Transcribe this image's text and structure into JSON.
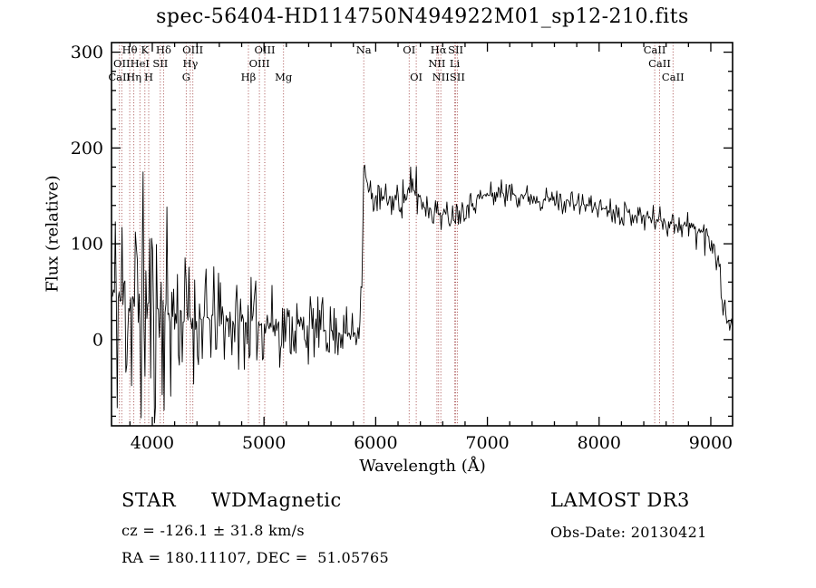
{
  "chart_data": {
    "type": "line",
    "title": "spec-56404-HD114750N494922M01_sp12-210.fits",
    "xlabel": "Wavelength (Å)",
    "ylabel": "Flux (relative)",
    "xlim": [
      3635,
      9195
    ],
    "ylim": [
      -90,
      310
    ],
    "xticks": [
      4000,
      5000,
      6000,
      7000,
      8000,
      9000
    ],
    "yticks": [
      0,
      100,
      200,
      300
    ],
    "x_minor_step": 200,
    "y_minor_step": 20,
    "grid": false,
    "legend": "none",
    "colors": {
      "spectrum": "#000000",
      "marker_line": "#9e3c3c",
      "label": "#111111",
      "frame": "#000000",
      "background": "#ffffff"
    },
    "spectral_lines": [
      {
        "label": "CaII",
        "wavelength": 3706,
        "row": 3
      },
      {
        "label": "OII",
        "wavelength": 3727,
        "row": 2
      },
      {
        "label": "Hθ",
        "wavelength": 3798,
        "row": 1
      },
      {
        "label": "Hη",
        "wavelength": 3835,
        "row": 3
      },
      {
        "label": "HeI",
        "wavelength": 3889,
        "row": 2
      },
      {
        "label": "K",
        "wavelength": 3934,
        "row": 1
      },
      {
        "label": "H",
        "wavelength": 3968,
        "row": 3
      },
      {
        "label": "SII",
        "wavelength": 4072,
        "row": 2
      },
      {
        "label": "Hδ",
        "wavelength": 4101,
        "row": 1
      },
      {
        "label": "G",
        "wavelength": 4304,
        "row": 3
      },
      {
        "label": "Hγ",
        "wavelength": 4340,
        "row": 2
      },
      {
        "label": "OIII",
        "wavelength": 4363,
        "row": 1
      },
      {
        "label": "Hβ",
        "wavelength": 4861,
        "row": 3
      },
      {
        "label": "OIII",
        "wavelength": 4959,
        "row": 2
      },
      {
        "label": "OIII",
        "wavelength": 5007,
        "row": 1
      },
      {
        "label": "Mg",
        "wavelength": 5175,
        "row": 3
      },
      {
        "label": "Na",
        "wavelength": 5893,
        "row": 1
      },
      {
        "label": "OI",
        "wavelength": 6300,
        "row": 1
      },
      {
        "label": "OI",
        "wavelength": 6363,
        "row": 3
      },
      {
        "label": "NII",
        "wavelength": 6548,
        "row": 2
      },
      {
        "label": "Hα",
        "wavelength": 6563,
        "row": 1
      },
      {
        "label": "NII",
        "wavelength": 6583,
        "row": 3
      },
      {
        "label": "Li",
        "wavelength": 6708,
        "row": 2
      },
      {
        "label": "SII",
        "wavelength": 6716,
        "row": 1
      },
      {
        "label": "SII",
        "wavelength": 6731,
        "row": 3
      },
      {
        "label": "CaII",
        "wavelength": 8498,
        "row": 1
      },
      {
        "label": "CaII",
        "wavelength": 8542,
        "row": 2
      },
      {
        "label": "CaII",
        "wavelength": 8662,
        "row": 3
      }
    ],
    "spectrum_profile": {
      "description": "Noisy stellar spectrum. control_points = [wavelength_A, mean_flux, noise_amplitude]; very noisy low flux (~0-50) blueward of 5880 A, sharp jump near Na 5893 A to peak ~190, then smooth continuum ~150 declining to ~115 at 8900 A with a steep drop at the red edge.",
      "control_points": [
        [
          3635,
          45,
          85
        ],
        [
          3750,
          40,
          85
        ],
        [
          3900,
          38,
          80
        ],
        [
          4050,
          32,
          75
        ],
        [
          4200,
          26,
          50
        ],
        [
          4350,
          22,
          38
        ],
        [
          4550,
          20,
          30
        ],
        [
          4800,
          18,
          26
        ],
        [
          5050,
          16,
          24
        ],
        [
          5300,
          13,
          22
        ],
        [
          5550,
          10,
          18
        ],
        [
          5750,
          6,
          15
        ],
        [
          5840,
          8,
          12
        ],
        [
          5875,
          60,
          15
        ],
        [
          5893,
          180,
          12
        ],
        [
          5910,
          170,
          12
        ],
        [
          5945,
          150,
          12
        ],
        [
          6050,
          146,
          10
        ],
        [
          6200,
          146,
          10
        ],
        [
          6310,
          152,
          16
        ],
        [
          6355,
          158,
          22
        ],
        [
          6420,
          142,
          9
        ],
        [
          6540,
          133,
          9
        ],
        [
          6650,
          129,
          9
        ],
        [
          6800,
          139,
          8
        ],
        [
          6950,
          149,
          8
        ],
        [
          7120,
          154,
          8
        ],
        [
          7300,
          151,
          8
        ],
        [
          7500,
          147,
          7
        ],
        [
          7700,
          144,
          7
        ],
        [
          7900,
          140,
          7
        ],
        [
          8100,
          136,
          7
        ],
        [
          8300,
          131,
          8
        ],
        [
          8500,
          126,
          8
        ],
        [
          8650,
          122,
          9
        ],
        [
          8800,
          118,
          10
        ],
        [
          8900,
          113,
          12
        ],
        [
          8975,
          108,
          12
        ],
        [
          9040,
          98,
          15
        ],
        [
          9080,
          70,
          15
        ],
        [
          9130,
          25,
          8
        ],
        [
          9195,
          13,
          5
        ]
      ],
      "noise_seed": 11,
      "samples": 650
    }
  },
  "footer": {
    "class_label": "STAR",
    "subclass_label": "WDMagnetic",
    "survey": "LAMOST DR3",
    "cz": "cz = -126.1 ± 31.8 km/s",
    "obs_date": "Obs-Date: 20130421",
    "ra_dec": "RA = 180.11107, DEC =  51.05765"
  }
}
